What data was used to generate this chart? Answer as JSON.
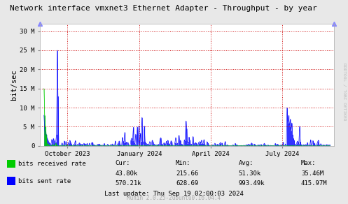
{
  "title": "Network interface vmxnet3 Ethernet Adapter - Throughput - by year",
  "ylabel": "bit/sec",
  "watermark": "RRDTOOL / TOBI OETIKER",
  "munin_version": "Munin 2.0.25-2ubuntu0.16.04.4",
  "bg_color": "#e8e8e8",
  "plot_bg_color": "#ffffff",
  "yticks": [
    0,
    5000000,
    10000000,
    15000000,
    20000000,
    25000000,
    30000000
  ],
  "ytick_labels": [
    "0",
    "5 M",
    "10 M",
    "15 M",
    "20 M",
    "25 M",
    "30 M"
  ],
  "ylim": [
    0,
    32000000
  ],
  "xtick_labels": [
    "October 2023",
    "January 2024",
    "April 2024",
    "July 2024"
  ],
  "xtick_positions": [
    30,
    122,
    213,
    304
  ],
  "legend": [
    {
      "label": "bits received rate",
      "color": "#00cc00"
    },
    {
      "label": "bits sent rate",
      "color": "#0000ff"
    }
  ],
  "stats_headers": [
    "Cur:",
    "Min:",
    "Avg:",
    "Max:"
  ],
  "stats_received": [
    "43.80k",
    "215.66",
    "51.30k",
    "35.46M"
  ],
  "stats_sent": [
    "570.21k",
    "628.69",
    "993.49k",
    "415.97M"
  ],
  "last_update": "Last update: Thu Sep 19 02:00:03 2024",
  "color_received": "#00cc00",
  "color_sent": "#0000ff",
  "color_grid": "#ff6666",
  "color_border": "#aaaaaa"
}
